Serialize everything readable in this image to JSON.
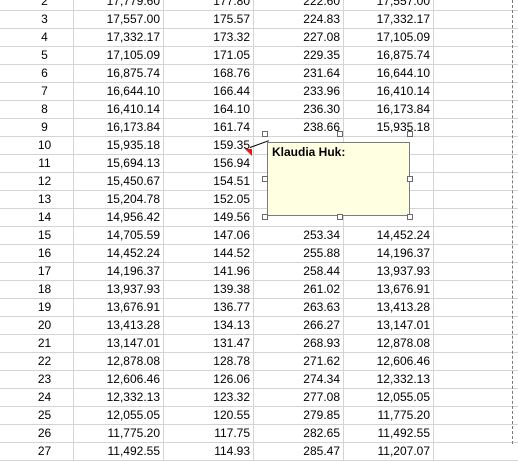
{
  "rows": [
    {
      "idx": "2",
      "a": "17,779.60",
      "b": "177.80",
      "c": "222.60",
      "d": "17,557.00"
    },
    {
      "idx": "3",
      "a": "17,557.00",
      "b": "175.57",
      "c": "224.83",
      "d": "17,332.17"
    },
    {
      "idx": "4",
      "a": "17,332.17",
      "b": "173.32",
      "c": "227.08",
      "d": "17,105.09"
    },
    {
      "idx": "5",
      "a": "17,105.09",
      "b": "171.05",
      "c": "229.35",
      "d": "16,875.74"
    },
    {
      "idx": "6",
      "a": "16,875.74",
      "b": "168.76",
      "c": "231.64",
      "d": "16,644.10"
    },
    {
      "idx": "7",
      "a": "16,644.10",
      "b": "166.44",
      "c": "233.96",
      "d": "16,410.14"
    },
    {
      "idx": "8",
      "a": "16,410.14",
      "b": "164.10",
      "c": "236.30",
      "d": "16,173.84"
    },
    {
      "idx": "9",
      "a": "16,173.84",
      "b": "161.74",
      "c": "238.66",
      "d": "15,935.18"
    },
    {
      "idx": "10",
      "a": "15,935.18",
      "b": "159.35",
      "c": "",
      "d": ""
    },
    {
      "idx": "11",
      "a": "15,694.13",
      "b": "156.94",
      "c": "",
      "d": ""
    },
    {
      "idx": "12",
      "a": "15,450.67",
      "b": "154.51",
      "c": "",
      "d": ""
    },
    {
      "idx": "13",
      "a": "15,204.78",
      "b": "152.05",
      "c": "",
      "d": ""
    },
    {
      "idx": "14",
      "a": "14,956.42",
      "b": "149.56",
      "c": "",
      "d": ""
    },
    {
      "idx": "15",
      "a": "14,705.59",
      "b": "147.06",
      "c": "253.34",
      "d": "14,452.24"
    },
    {
      "idx": "16",
      "a": "14,452.24",
      "b": "144.52",
      "c": "255.88",
      "d": "14,196.37"
    },
    {
      "idx": "17",
      "a": "14,196.37",
      "b": "141.96",
      "c": "258.44",
      "d": "13,937.93"
    },
    {
      "idx": "18",
      "a": "13,937.93",
      "b": "139.38",
      "c": "261.02",
      "d": "13,676.91"
    },
    {
      "idx": "19",
      "a": "13,676.91",
      "b": "136.77",
      "c": "263.63",
      "d": "13,413.28"
    },
    {
      "idx": "20",
      "a": "13,413.28",
      "b": "134.13",
      "c": "266.27",
      "d": "13,147.01"
    },
    {
      "idx": "21",
      "a": "13,147.01",
      "b": "131.47",
      "c": "268.93",
      "d": "12,878.08"
    },
    {
      "idx": "22",
      "a": "12,878.08",
      "b": "128.78",
      "c": "271.62",
      "d": "12,606.46"
    },
    {
      "idx": "23",
      "a": "12,606.46",
      "b": "126.06",
      "c": "274.34",
      "d": "12,332.13"
    },
    {
      "idx": "24",
      "a": "12,332.13",
      "b": "123.32",
      "c": "277.08",
      "d": "12,055.05"
    },
    {
      "idx": "25",
      "a": "12,055.05",
      "b": "120.55",
      "c": "279.85",
      "d": "11,775.20"
    },
    {
      "idx": "26",
      "a": "11,775.20",
      "b": "117.75",
      "c": "282.65",
      "d": "11,492.55"
    },
    {
      "idx": "27",
      "a": "11,492.55",
      "b": "114.93",
      "c": "285.47",
      "d": "11,207.07"
    }
  ],
  "comment": {
    "author": "Klaudia Huk:"
  }
}
